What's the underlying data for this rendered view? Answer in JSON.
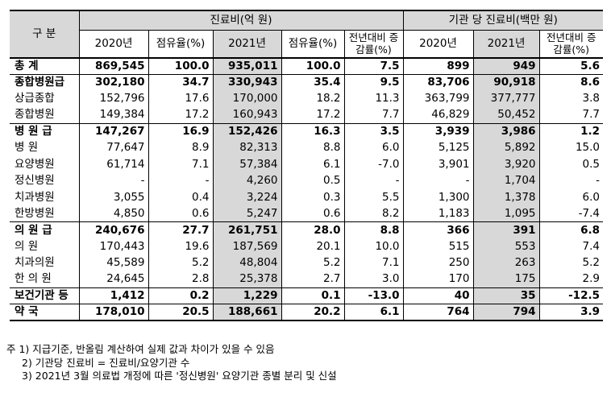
{
  "header": {
    "category": "구  분",
    "group_medical": "진료비(억 원)",
    "group_per_inst": "기관 당 진료비(백만 원)",
    "cols": [
      "2020년",
      "점유율(%)",
      "2021년",
      "점유율(%)",
      "전년대비 증감률(%)",
      "2020년",
      "2021년",
      "전년대비 증감률(%)"
    ]
  },
  "rows": [
    {
      "label": "총    계",
      "cells": [
        "869,545",
        "100.0",
        "935,011",
        "100.0",
        "7.5",
        "899",
        "949",
        "5.6"
      ],
      "bold": true
    },
    {
      "label": "종합병원급",
      "cells": [
        "302,180",
        "34.7",
        "330,943",
        "35.4",
        "9.5",
        "83,706",
        "90,918",
        "8.6"
      ],
      "bold": true
    },
    {
      "label": "상급종합",
      "cells": [
        "152,796",
        "17.6",
        "170,000",
        "18.2",
        "11.3",
        "363,799",
        "377,777",
        "3.8"
      ],
      "bold": false
    },
    {
      "label": "종합병원",
      "cells": [
        "149,384",
        "17.2",
        "160,943",
        "17.2",
        "7.7",
        "46,829",
        "50,452",
        "7.7"
      ],
      "bold": false
    },
    {
      "label": "병 원 급",
      "cells": [
        "147,267",
        "16.9",
        "152,426",
        "16.3",
        "3.5",
        "3,939",
        "3,986",
        "1.2"
      ],
      "bold": true
    },
    {
      "label": "병     원",
      "cells": [
        "77,647",
        "8.9",
        "82,313",
        "8.8",
        "6.0",
        "5,125",
        "5,892",
        "15.0"
      ],
      "bold": false
    },
    {
      "label": "요양병원",
      "cells": [
        "61,714",
        "7.1",
        "57,384",
        "6.1",
        "-7.0",
        "3,901",
        "3,920",
        "0.5"
      ],
      "bold": false
    },
    {
      "label": "정신병원",
      "cells": [
        "-",
        "-",
        "4,260",
        "0.5",
        "-",
        "-",
        "1,704",
        "-"
      ],
      "bold": false
    },
    {
      "label": "치과병원",
      "cells": [
        "3,055",
        "0.4",
        "3,224",
        "0.3",
        "5.5",
        "1,300",
        "1,378",
        "6.0"
      ],
      "bold": false
    },
    {
      "label": "한방병원",
      "cells": [
        "4,850",
        "0.6",
        "5,247",
        "0.6",
        "8.2",
        "1,183",
        "1,095",
        "-7.4"
      ],
      "bold": false
    },
    {
      "label": "의 원 급",
      "cells": [
        "240,676",
        "27.7",
        "261,751",
        "28.0",
        "8.8",
        "366",
        "391",
        "6.8"
      ],
      "bold": true
    },
    {
      "label": "의     원",
      "cells": [
        "170,443",
        "19.6",
        "187,569",
        "20.1",
        "10.0",
        "515",
        "553",
        "7.4"
      ],
      "bold": false
    },
    {
      "label": "치과의원",
      "cells": [
        "45,589",
        "5.2",
        "48,804",
        "5.2",
        "7.1",
        "250",
        "263",
        "5.2"
      ],
      "bold": false
    },
    {
      "label": "한 의 원",
      "cells": [
        "24,645",
        "2.8",
        "25,378",
        "2.7",
        "3.0",
        "170",
        "175",
        "2.9"
      ],
      "bold": false
    },
    {
      "label": "보건기관 등",
      "cells": [
        "1,412",
        "0.2",
        "1,229",
        "0.1",
        "-13.0",
        "40",
        "35",
        "-12.5"
      ],
      "bold": true
    },
    {
      "label": "약     국",
      "cells": [
        "178,010",
        "20.5",
        "188,661",
        "20.2",
        "6.1",
        "764",
        "794",
        "3.9"
      ],
      "bold": true
    }
  ],
  "notes": [
    "주 1) 지급기준, 반올림 계산하여 실제 값과 차이가 있을 수 있음",
    "2) 기관당 진료비 = 진료비/요양기관 수",
    "3) 2021년 3월 의료법 개정에 따른 '정신병원' 요양기관 종별 분리 및 신설"
  ]
}
